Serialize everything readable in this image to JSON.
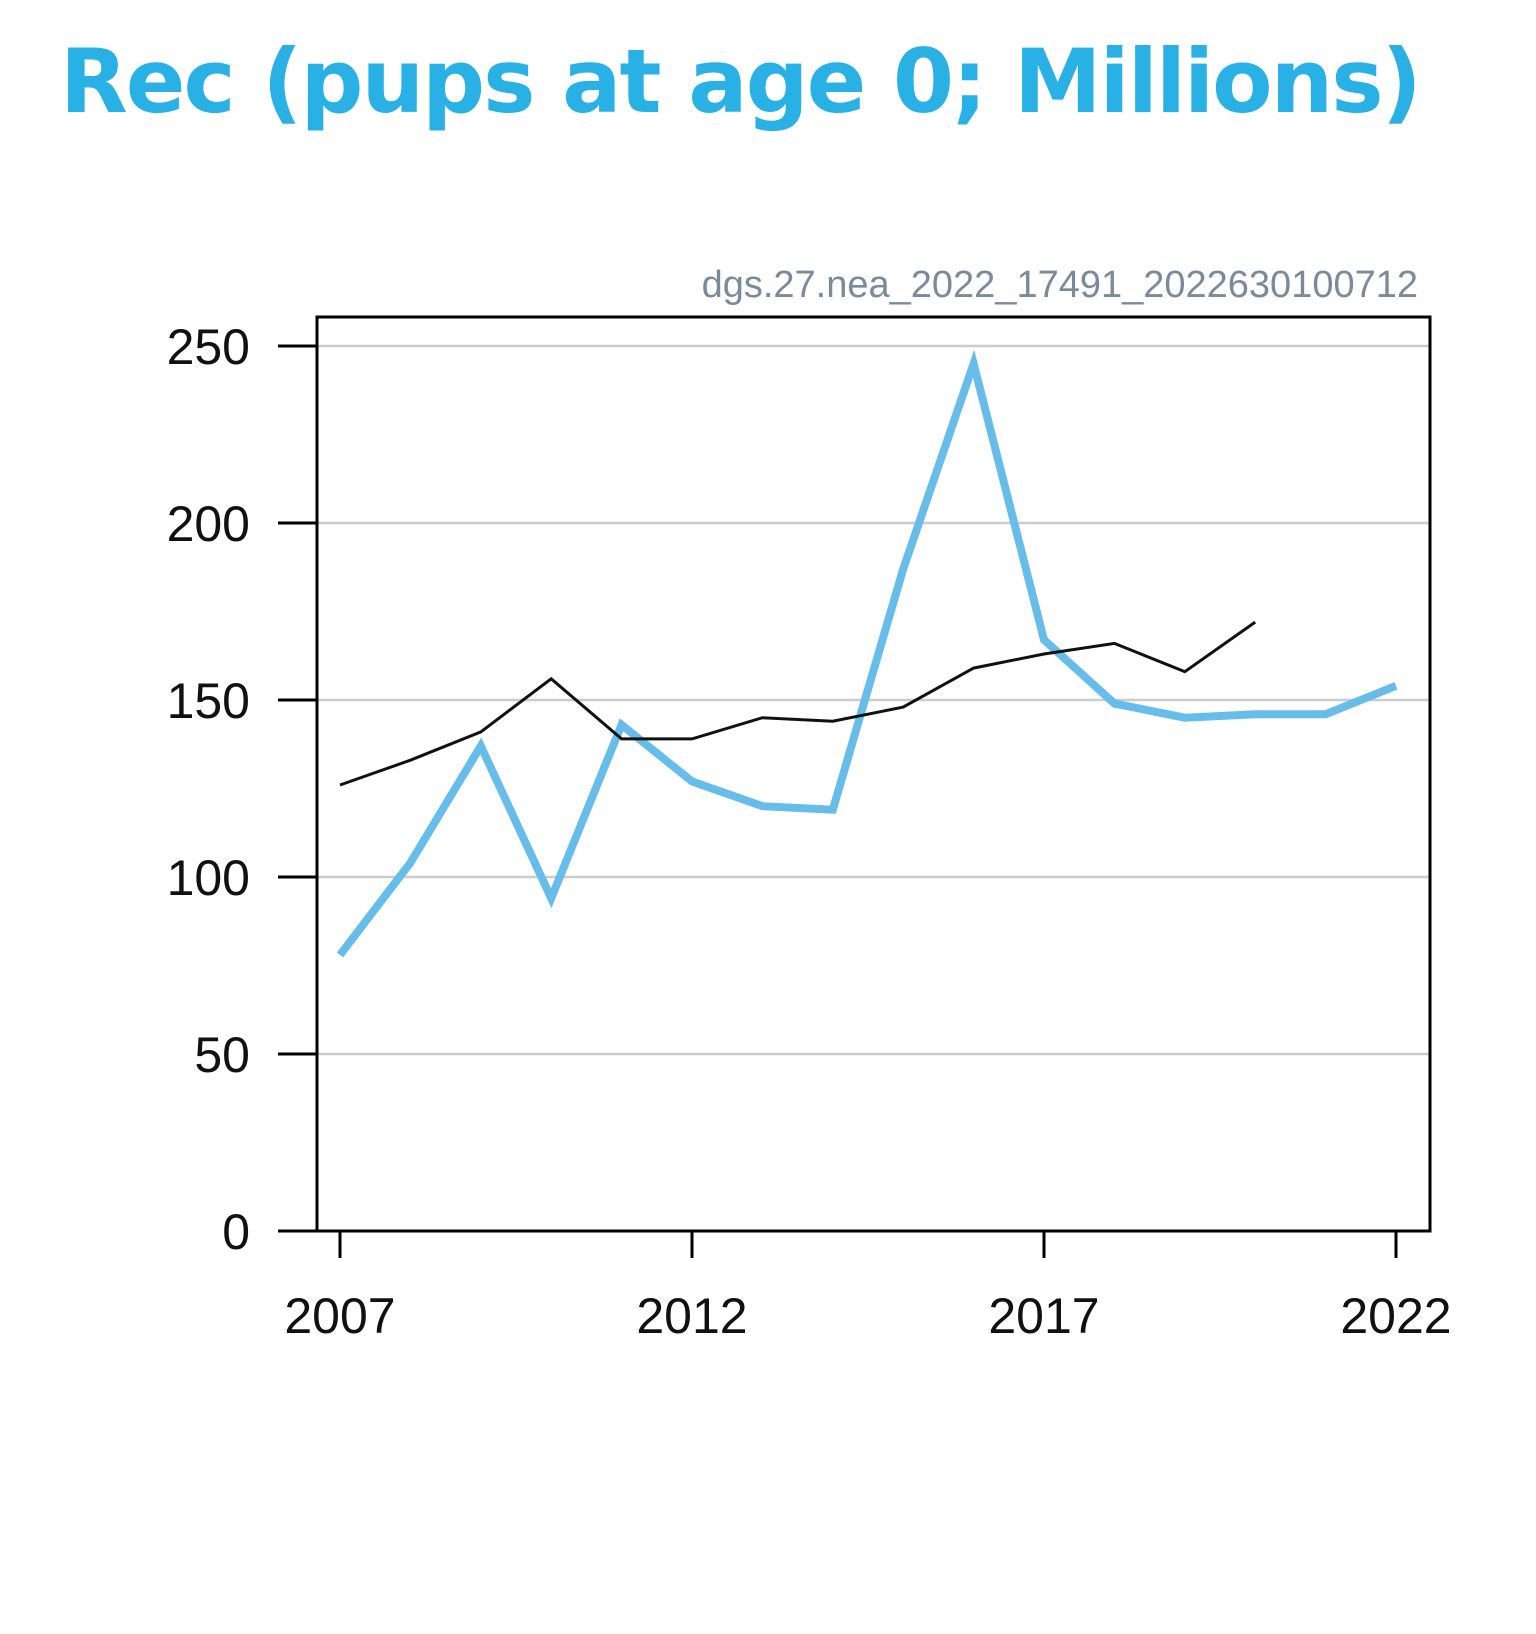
{
  "chart_data": {
    "type": "line",
    "title": "Rec (pups at age 0; Millions)",
    "caption": "dgs.27.nea_2022_17491_2022630100712",
    "xlim": [
      2007,
      2022
    ],
    "ylim": [
      0,
      250
    ],
    "x_ticks": [
      2007,
      2012,
      2017,
      2022
    ],
    "y_ticks": [
      0,
      50,
      100,
      150,
      200,
      250
    ],
    "grid": "horizontal",
    "series": [
      {
        "color": "#66bde9",
        "x": [
          2007,
          2008,
          2009,
          2010,
          2011,
          2012,
          2013,
          2014,
          2015,
          2016,
          2017,
          2018,
          2019,
          2020,
          2021,
          2022
        ],
        "values": [
          78,
          104,
          137,
          94,
          143,
          127,
          120,
          119,
          187,
          245,
          167,
          149,
          145,
          146,
          146,
          154
        ]
      },
      {
        "color": "#111111",
        "x": [
          2007,
          2008,
          2009,
          2010,
          2011,
          2012,
          2013,
          2014,
          2015,
          2016,
          2017,
          2018,
          2019,
          2020
        ],
        "values": [
          126,
          133,
          141,
          156,
          139,
          139,
          145,
          144,
          148,
          159,
          163,
          166,
          158,
          172
        ]
      }
    ]
  }
}
